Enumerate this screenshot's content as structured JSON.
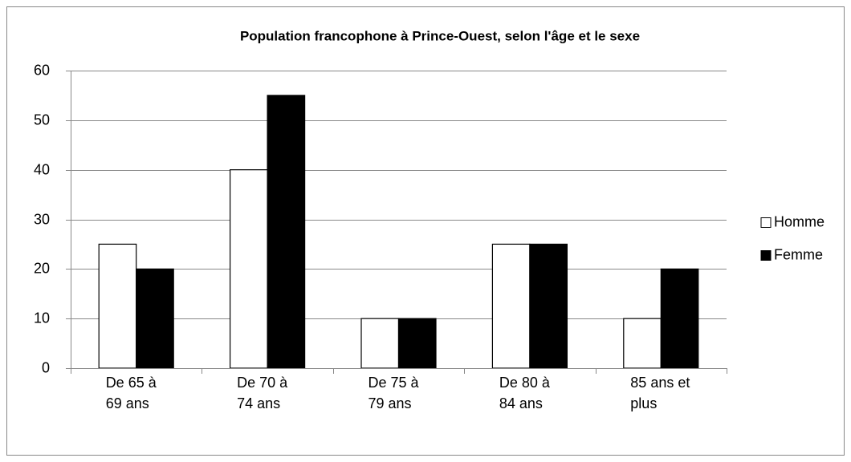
{
  "chart_data": {
    "type": "bar",
    "title": "Population francophone à Prince-Ouest, selon l'âge et le sexe",
    "categories": [
      "De 65 à 69 ans",
      "De 70 à 74 ans",
      "De 75 à 79 ans",
      "De 80 à 84 ans",
      "85 ans et plus"
    ],
    "series": [
      {
        "name": "Homme",
        "color": "#ffffff",
        "values": [
          25,
          40,
          10,
          25,
          10
        ]
      },
      {
        "name": "Femme",
        "color": "#000000",
        "values": [
          20,
          55,
          10,
          25,
          20
        ]
      }
    ],
    "ylim": [
      0,
      60
    ],
    "yticks": [
      0,
      10,
      20,
      30,
      40,
      50,
      60
    ],
    "grid": true,
    "legend": "right"
  }
}
